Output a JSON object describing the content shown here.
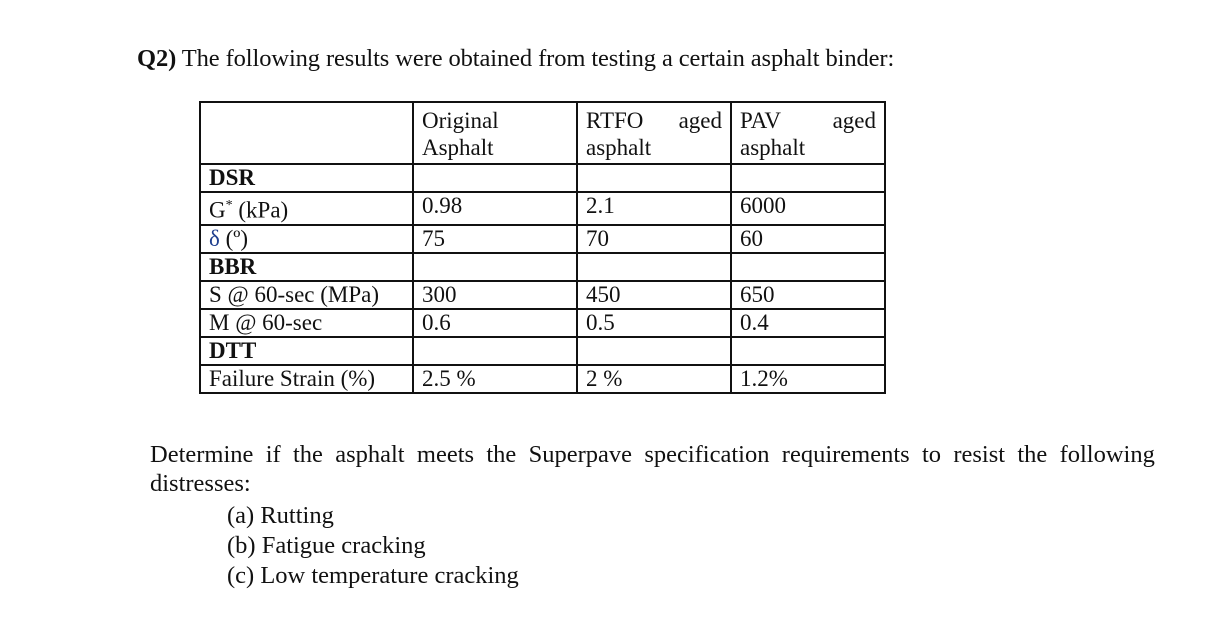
{
  "question": {
    "number": "Q2)",
    "text": "The following results were obtained from testing a certain asphalt binder:"
  },
  "table": {
    "headers": [
      {
        "line1_a": "",
        "line1_b": "",
        "line2": ""
      },
      {
        "line1_a": "Original",
        "line1_b": "",
        "line2": "Asphalt"
      },
      {
        "line1_a": "RTFO",
        "line1_b": "aged",
        "line2": "asphalt"
      },
      {
        "line1_a": "PAV",
        "line1_b": "aged",
        "line2": "asphalt"
      }
    ],
    "rows": [
      {
        "type": "section",
        "label": "DSR",
        "values": [
          "",
          "",
          ""
        ]
      },
      {
        "type": "data",
        "label_main": "G",
        "label_sup": "*",
        "label_rest": " (kPa)",
        "values": [
          "0.98",
          "2.1",
          "6000"
        ]
      },
      {
        "type": "data",
        "label_main": "δ",
        "label_sup": "",
        "label_rest": " (º)",
        "values": [
          "75",
          "70",
          "60"
        ]
      },
      {
        "type": "section",
        "label": "BBR",
        "values": [
          "",
          "",
          ""
        ]
      },
      {
        "type": "data",
        "label_main": "S @ 60-sec (MPa)",
        "label_sup": "",
        "label_rest": "",
        "values": [
          "300",
          "450",
          "650"
        ]
      },
      {
        "type": "data",
        "label_main": "M @ 60-sec",
        "label_sup": "",
        "label_rest": "",
        "values": [
          "0.6",
          "0.5",
          "0.4"
        ]
      },
      {
        "type": "section",
        "label": "DTT",
        "values": [
          "",
          "",
          ""
        ]
      },
      {
        "type": "data",
        "label_main": "Failure Strain (%)",
        "label_sup": "",
        "label_rest": "",
        "values": [
          "2.5 %",
          "2 %",
          "1.2%"
        ]
      }
    ]
  },
  "instruction": {
    "line1_words": [
      "Determine",
      "if",
      "the",
      "asphalt",
      "meets",
      "the",
      "Superpave",
      "specification",
      "requirements",
      "to",
      "resist",
      "the",
      "following"
    ],
    "line2": "distresses:"
  },
  "parts": [
    "(a) Rutting",
    "(b) Fatigue cracking",
    "(c) Low temperature cracking"
  ],
  "colors": {
    "text": "#111111",
    "border": "#111111",
    "delta_glyph": "#1f3f8f",
    "background": "#ffffff"
  }
}
